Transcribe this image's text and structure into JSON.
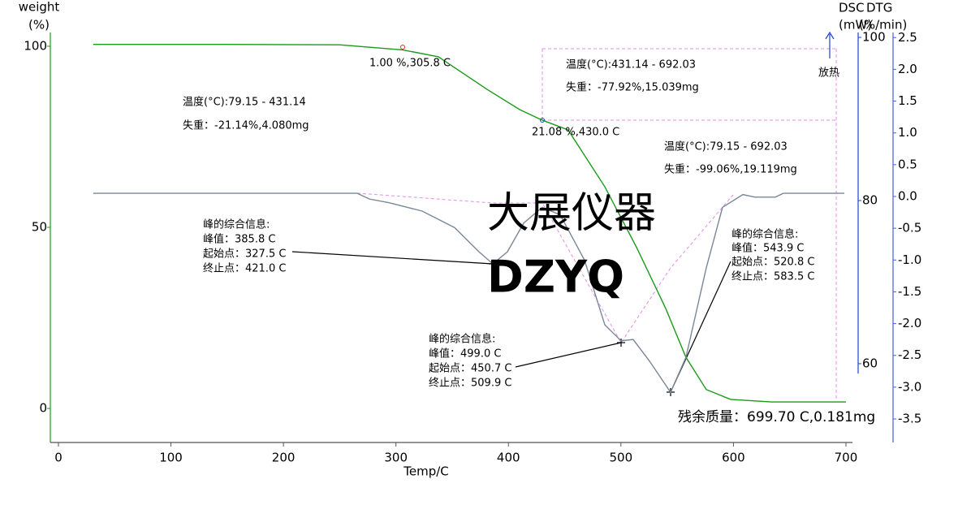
{
  "chart_data": {
    "type": "line",
    "xlabel": "Temp/C",
    "ylabel": [
      "weight",
      "(%)"
    ],
    "y2label": [
      "DTG",
      "(%/min)"
    ],
    "y3label": [
      "DSC",
      "(mW)"
    ],
    "xlim": [
      -7.2,
      705.8
    ],
    "xticks": [
      0,
      100,
      200,
      300,
      400,
      500,
      600,
      700
    ],
    "ylim": [
      -9.4,
      103.8
    ],
    "yticks": [
      0,
      50,
      100
    ],
    "y2lim": [
      -3.87,
      2.58
    ],
    "y2ticks": [
      2.5,
      {
        "value": 2,
        "label": "2.0"
      },
      1.5,
      {
        "value": 1,
        "label": "1.0"
      },
      0.5,
      {
        "value": 0,
        "label": "0.0"
      },
      -0.5,
      {
        "value": -1,
        "label": "-1.0"
      },
      -1.5,
      {
        "value": -2,
        "label": "-2.0"
      },
      -2.5,
      {
        "value": -3,
        "label": "-3.0"
      },
      -3.5
    ],
    "y3lim": [
      58.8,
      100.6
    ],
    "y3ticks": [
      60,
      80,
      100
    ],
    "series": [
      {
        "color": "#1a9a1a",
        "x": [
          31,
          80,
          150,
          250,
          305.8,
          337.7,
          381,
          410,
          430,
          453,
          485.7,
          514,
          539.8,
          557.8,
          575.9,
          597.5,
          633.6,
          700
        ],
        "values": [
          100.5,
          100.5,
          100.5,
          100.4,
          99.0,
          97.1,
          88.1,
          82.5,
          79.6,
          76.9,
          61.2,
          44.4,
          27.6,
          14.1,
          5.2,
          2.5,
          1.8,
          1.8
        ]
      },
      {
        "color": "#7a8798",
        "axis": "y2",
        "x": [
          31,
          265.6,
          276.4,
          294.4,
          323.3,
          352.2,
          373.8,
          386.1,
          399.1,
          413.5,
          430.1,
          446,
          467.6,
          485.7,
          500.1,
          510.9,
          525.4,
          544.1,
          557.8,
          575.9,
          590.3,
          608.4,
          619.2,
          637.2,
          644.4,
          698.6
        ],
        "values": [
          0.05,
          0.05,
          -0.04,
          -0.1,
          -0.23,
          -0.49,
          -0.87,
          -1.06,
          -0.87,
          -0.42,
          -0.17,
          -0.29,
          -1.0,
          -2.02,
          -2.27,
          -2.25,
          -2.59,
          -3.08,
          -2.53,
          -1.12,
          -0.17,
          0.03,
          -0.01,
          -0.01,
          0.05,
          0.05
        ]
      }
    ],
    "annotations": [
      "1.00 %,305.8 C",
      "21.08 %,430.0 C",
      "温度(°C):79.15 - 431.14",
      "失重：-21.14%,4.080mg",
      "温度(°C):431.14 - 692.03",
      "失重：-77.92%,15.039mg",
      "温度(°C):79.15 - 692.03",
      "失重：-99.06%,19.119mg",
      "峰的综合信息:",
      "峰值：385.8 C",
      "起始点：327.5 C",
      "终止点：421.0 C",
      "峰的综合信息:",
      "峰值：499.0 C",
      "起始点：450.7 C",
      "终止点：509.9 C",
      "峰的综合信息:",
      "峰值：543.9 C",
      "起始点：520.8 C",
      "终止点：583.5 C",
      "放热",
      "残余质量：699.70 C,0.181mg",
      "大展仪器",
      "DZYQ"
    ]
  }
}
